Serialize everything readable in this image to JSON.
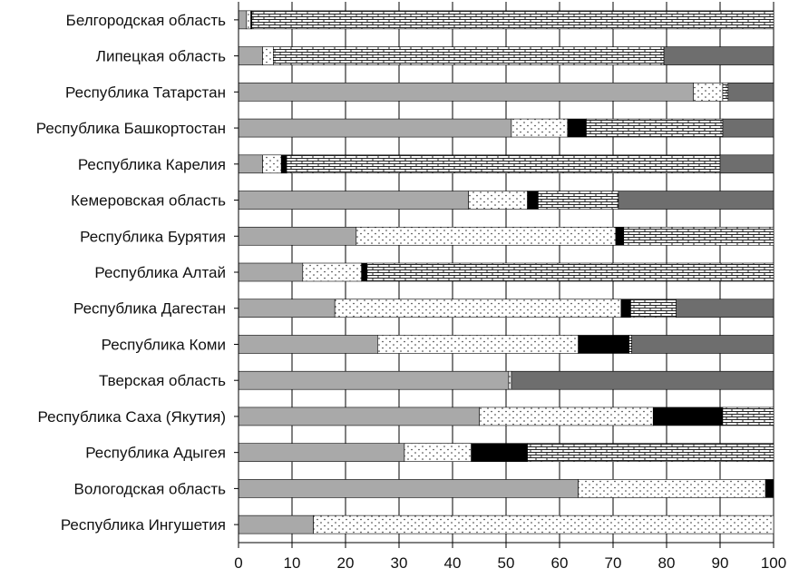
{
  "chart_data": {
    "type": "bar",
    "orientation": "horizontal",
    "stacked": true,
    "title": "",
    "xlabel": "",
    "ylabel": "",
    "xlim": [
      0,
      100
    ],
    "xticks": [
      "0",
      "10",
      "20",
      "30",
      "40",
      "50",
      "60",
      "70",
      "80",
      "90",
      "100"
    ],
    "grid": true,
    "categories": [
      "Белгородская область",
      "Липецкая область",
      "Республика Татарстан",
      "Республика Башкортостан",
      "Республика Карелия",
      "Кемеровская область",
      "Республика Бурятия",
      "Республика Алтай",
      "Республика Дагестан",
      "Республика Коми",
      "Тверская область",
      "Республика Саха (Якутия)",
      "Республика Адыгея",
      "Вологодская область",
      "Республика Ингушетия"
    ],
    "series": [
      {
        "name": "gray",
        "color": "#a9a9a9",
        "pattern": "solid",
        "values": [
          1.5,
          4.5,
          85,
          51,
          4.5,
          43,
          22,
          12,
          18,
          26,
          50.5,
          45,
          31,
          63.5,
          14
        ]
      },
      {
        "name": "dotted",
        "color": "#ffffff",
        "pattern": "dots",
        "values": [
          0.8,
          2,
          5.5,
          10.5,
          3.5,
          11,
          48.5,
          11,
          53.5,
          37.5,
          0.5,
          32.5,
          12.5,
          35,
          86
        ]
      },
      {
        "name": "black",
        "color": "#000000",
        "pattern": "solid",
        "values": [
          0.2,
          0,
          0,
          3.5,
          1,
          2,
          1.5,
          1,
          1.8,
          9.5,
          0,
          13,
          10.5,
          1.5,
          0
        ]
      },
      {
        "name": "brick",
        "color": "#ffffff",
        "pattern": "brick",
        "values": [
          97.5,
          73,
          1,
          25.5,
          81,
          15,
          28,
          76,
          8.5,
          0.5,
          0,
          9.5,
          46,
          0,
          0
        ]
      },
      {
        "name": "dark-gray",
        "color": "#6e6e6e",
        "pattern": "solid",
        "values": [
          0,
          20.5,
          8.5,
          9.5,
          10,
          29,
          0,
          0,
          18.2,
          26.5,
          49,
          0,
          0,
          0,
          0
        ]
      }
    ]
  }
}
